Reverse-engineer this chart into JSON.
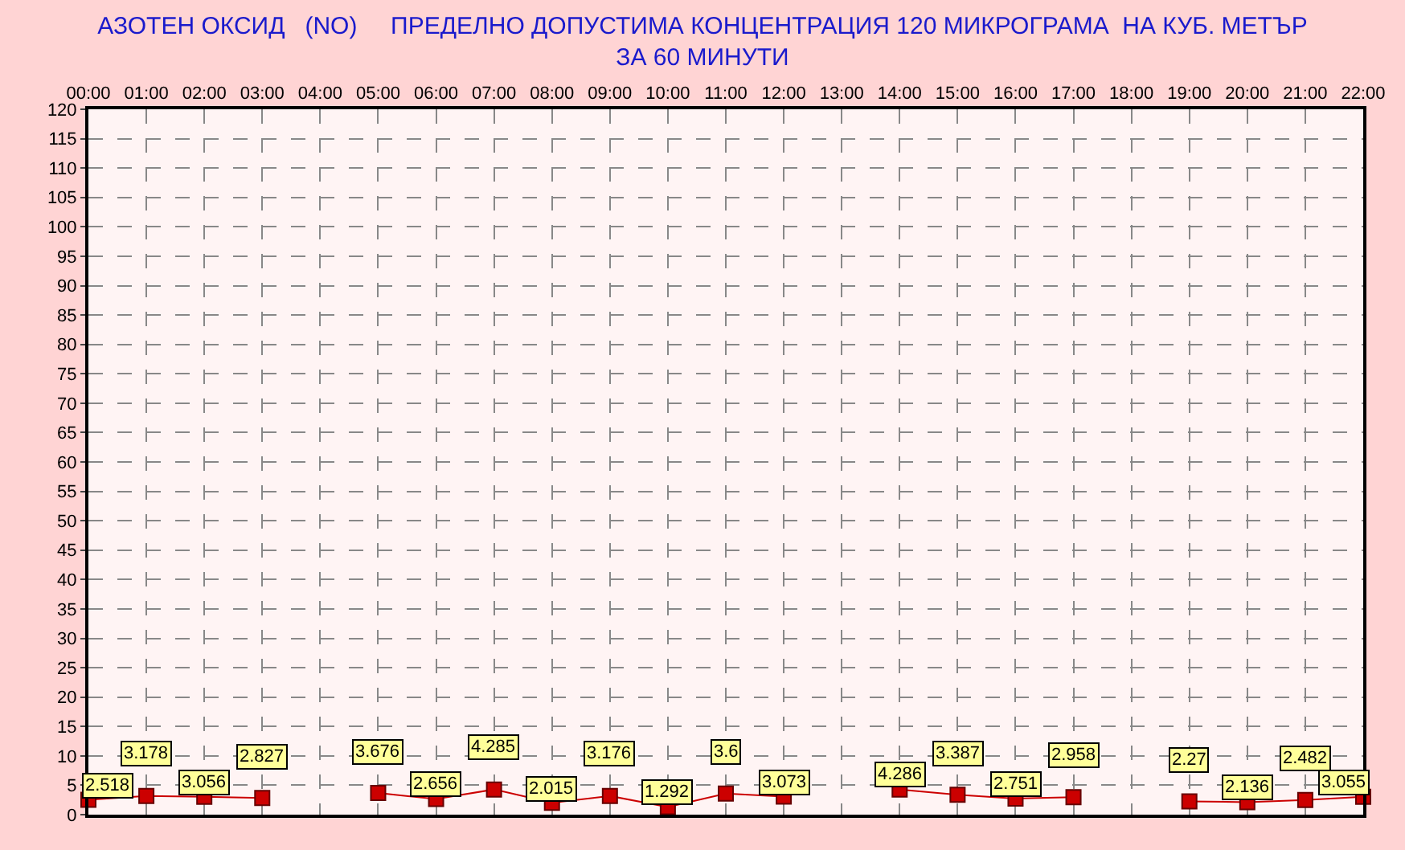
{
  "chart_data": {
    "type": "line",
    "title": "АЗОТЕН ОКСИД   (NO)     ПРЕДЕЛНО ДОПУСТИМА КОНЦЕНТРАЦИЯ 120 МИКРОГРАМА  НА КУБ. МЕТЪР\nЗА 60 МИНУТИ",
    "categories": [
      "00:00",
      "01:00",
      "02:00",
      "03:00",
      "04:00",
      "05:00",
      "06:00",
      "07:00",
      "08:00",
      "09:00",
      "10:00",
      "11:00",
      "12:00",
      "13:00",
      "14:00",
      "15:00",
      "16:00",
      "17:00",
      "18:00",
      "19:00",
      "20:00",
      "21:00",
      "22:00"
    ],
    "series": [
      {
        "color": "#cc0000",
        "values": [
          2.518,
          3.178,
          3.056,
          2.827,
          null,
          3.676,
          2.656,
          4.285,
          2.015,
          3.176,
          1.292,
          3.6,
          3.073,
          null,
          4.286,
          3.387,
          2.751,
          2.958,
          null,
          2.27,
          2.136,
          2.482,
          3.055
        ]
      }
    ],
    "ylim": [
      0,
      120
    ],
    "yticks": [
      0,
      5,
      10,
      15,
      20,
      25,
      30,
      35,
      40,
      45,
      50,
      55,
      60,
      65,
      70,
      75,
      80,
      85,
      90,
      95,
      100,
      105,
      110,
      115,
      120
    ],
    "data_labels": true,
    "grid": true,
    "marker": "square",
    "line_style": "solid"
  }
}
